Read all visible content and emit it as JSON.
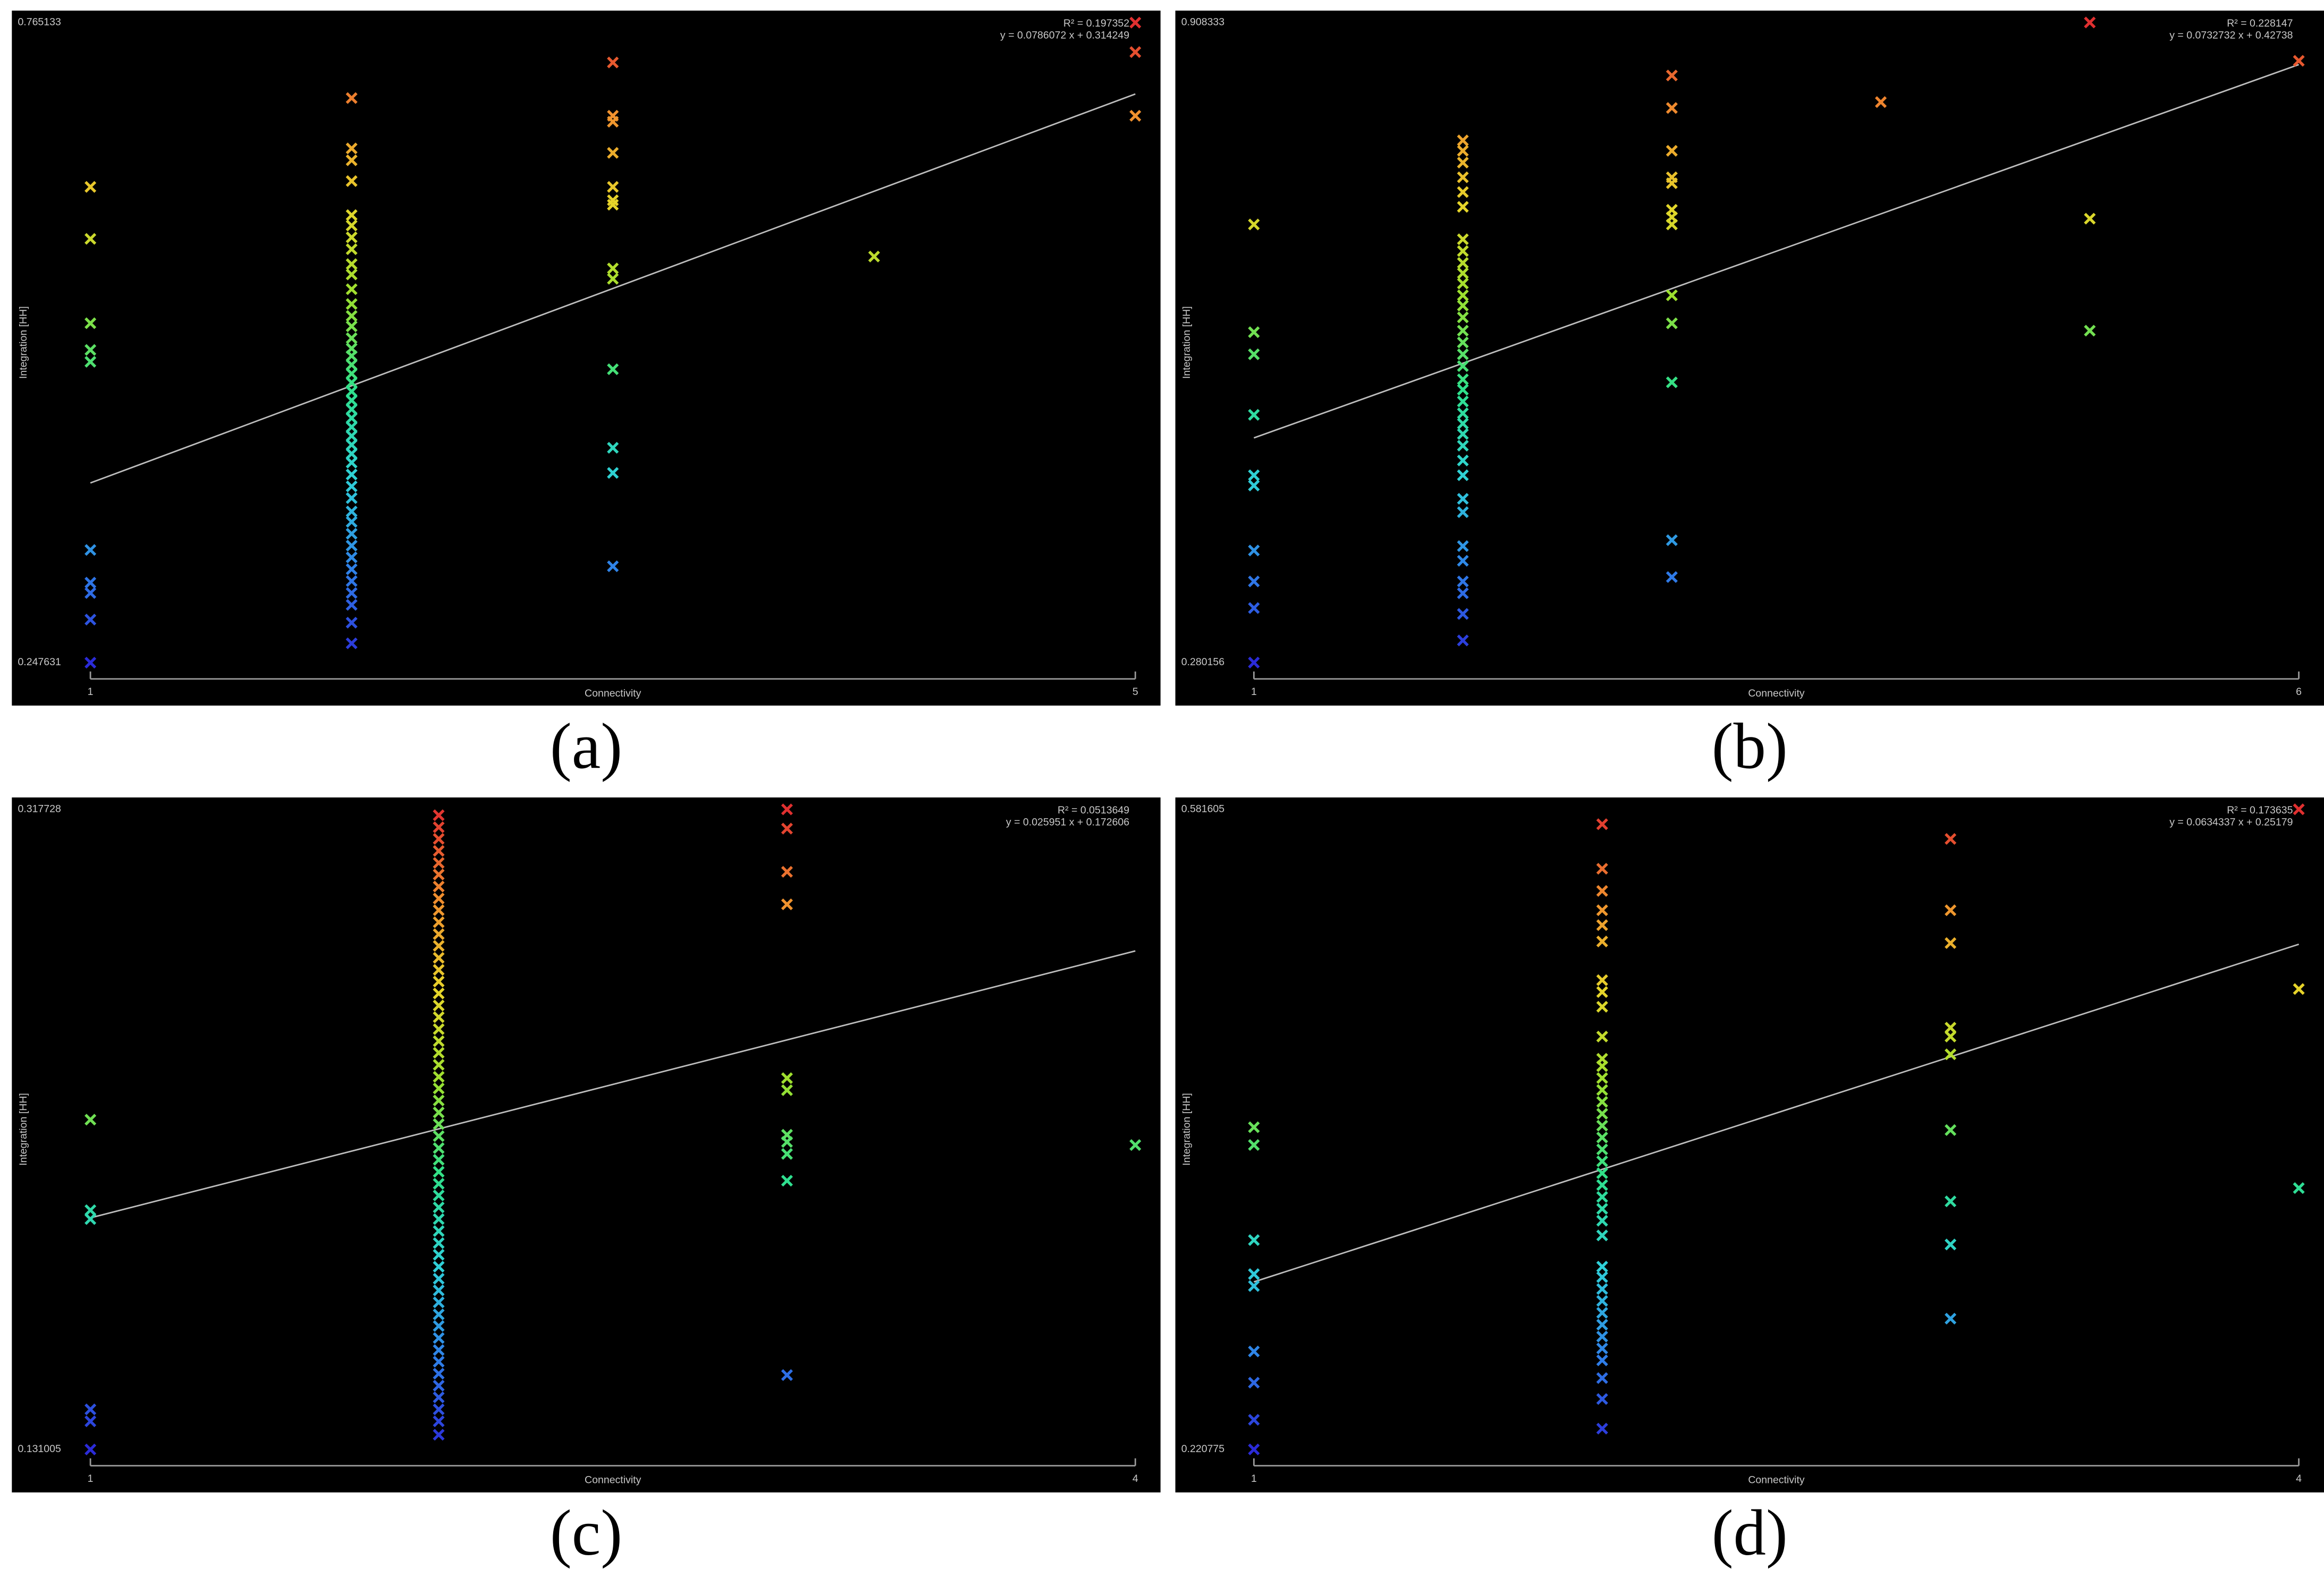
{
  "chart_data": [
    {
      "type": "scatter",
      "label": "(a)",
      "x_label": "Connectivity",
      "y_label": "Integration [HH]",
      "r2_label": "R² = 0.197352",
      "equation_label": "y = 0.0786072 x + 0.314249",
      "trendline": {
        "slope": 0.0786072,
        "intercept": 0.314249
      },
      "xlim": [
        1,
        5
      ],
      "xticks": [
        1,
        5
      ],
      "ylim": [
        0.247631,
        0.765133
      ],
      "yticks": [
        0.247631,
        0.765133
      ],
      "marker": "x",
      "background": "#000000",
      "trendline_color": "#bdbdbd",
      "colormap": [
        "#2b2bd8",
        "#2f7fe8",
        "#2fd0d8",
        "#2fe08a",
        "#9be02f",
        "#e6d52a",
        "#f0902e",
        "#e03030"
      ],
      "x": [
        1,
        1,
        1,
        1,
        1,
        1,
        1,
        1,
        1,
        1,
        2,
        2,
        2,
        2,
        2,
        2,
        2,
        2,
        2,
        2,
        2,
        2,
        2,
        2,
        2,
        2,
        2,
        2,
        2,
        2,
        2,
        2,
        2,
        2,
        2,
        2,
        2,
        2,
        2,
        2,
        2,
        2,
        2,
        2,
        2,
        2,
        2,
        2,
        2,
        2,
        2,
        2,
        2,
        3,
        3,
        3,
        3,
        3,
        3,
        3,
        3,
        3,
        3,
        3,
        3,
        3,
        4,
        5,
        5,
        5
      ],
      "values": [
        0.6322,
        0.5902,
        0.522,
        0.5004,
        0.4908,
        0.3387,
        0.3123,
        0.3039,
        0.2824,
        0.2476,
        0.704,
        0.6633,
        0.6537,
        0.6369,
        0.6094,
        0.601,
        0.5914,
        0.5818,
        0.5698,
        0.5614,
        0.5495,
        0.5375,
        0.5279,
        0.5195,
        0.5099,
        0.5016,
        0.4956,
        0.4884,
        0.4812,
        0.474,
        0.4668,
        0.4596,
        0.4524,
        0.4453,
        0.4381,
        0.4309,
        0.4237,
        0.4165,
        0.4093,
        0.3997,
        0.3901,
        0.3806,
        0.3698,
        0.3614,
        0.3518,
        0.3422,
        0.3327,
        0.3231,
        0.3135,
        0.3039,
        0.2943,
        0.2799,
        0.2632,
        0.7328,
        0.6897,
        0.6849,
        0.6597,
        0.6322,
        0.6214,
        0.6178,
        0.5663,
        0.5579,
        0.4848,
        0.4213,
        0.401,
        0.3255,
        0.5759,
        0.765,
        0.7412,
        0.6897
      ]
    },
    {
      "type": "scatter",
      "label": "(b)",
      "x_label": "Connectivity",
      "y_label": "Integration [HH]",
      "r2_label": "R² = 0.228147",
      "equation_label": "y = 0.0732732 x + 0.42738",
      "trendline": {
        "slope": 0.0732732,
        "intercept": 0.42738
      },
      "xlim": [
        1,
        6
      ],
      "xticks": [
        1,
        6
      ],
      "ylim": [
        0.280156,
        0.908333
      ],
      "yticks": [
        0.280156,
        0.908333
      ],
      "marker": "x",
      "background": "#000000",
      "trendline_color": "#bdbdbd",
      "colormap": [
        "#2b2bd8",
        "#2f7fe8",
        "#2fd0d8",
        "#2fe08a",
        "#9be02f",
        "#e6d52a",
        "#f0902e",
        "#e03030"
      ],
      "x": [
        1,
        1,
        1,
        1,
        1,
        1,
        1,
        1,
        1,
        1,
        2,
        2,
        2,
        2,
        2,
        2,
        2,
        2,
        2,
        2,
        2,
        2,
        2,
        2,
        2,
        2,
        2,
        2,
        2,
        2,
        2,
        2,
        2,
        2,
        2,
        2,
        2,
        2,
        2,
        2,
        2,
        2,
        2,
        2,
        2,
        3,
        3,
        3,
        3,
        3,
        3,
        3,
        3,
        3,
        3,
        3,
        3,
        3,
        4,
        5,
        5,
        5,
        6
      ],
      "values": [
        0.7101,
        0.6044,
        0.5827,
        0.5233,
        0.464,
        0.4539,
        0.3902,
        0.3598,
        0.3337,
        0.2802,
        0.7926,
        0.7824,
        0.7708,
        0.7564,
        0.7419,
        0.7274,
        0.6956,
        0.684,
        0.6724,
        0.6623,
        0.6522,
        0.6406,
        0.6305,
        0.6189,
        0.6059,
        0.5943,
        0.5827,
        0.5711,
        0.5581,
        0.548,
        0.5364,
        0.5248,
        0.5147,
        0.5045,
        0.493,
        0.4785,
        0.464,
        0.4409,
        0.4278,
        0.3945,
        0.3801,
        0.3598,
        0.3482,
        0.3279,
        0.3019,
        0.8563,
        0.8244,
        0.7824,
        0.7564,
        0.7506,
        0.7245,
        0.7173,
        0.7101,
        0.6406,
        0.6131,
        0.5552,
        0.4003,
        0.3641,
        0.8302,
        0.9083,
        0.7158,
        0.6059,
        0.8707
      ]
    },
    {
      "type": "scatter",
      "label": "(c)",
      "x_label": "Connectivity",
      "y_label": "Integration [HH]",
      "r2_label": "R² = 0.0513649",
      "equation_label": "y = 0.025951 x + 0.172606",
      "trendline": {
        "slope": 0.025951,
        "intercept": 0.172606
      },
      "xlim": [
        1,
        4
      ],
      "xticks": [
        1,
        4
      ],
      "ylim": [
        0.131005,
        0.317728
      ],
      "yticks": [
        0.131005,
        0.317728
      ],
      "marker": "x",
      "background": "#000000",
      "trendline_color": "#bdbdbd",
      "colormap": [
        "#2b2bd8",
        "#2f7fe8",
        "#2fd0d8",
        "#2fe08a",
        "#9be02f",
        "#e6d52a",
        "#f0902e",
        "#e03030"
      ],
      "x": [
        1,
        1,
        1,
        1,
        1,
        1,
        2,
        2,
        2,
        2,
        2,
        2,
        2,
        2,
        2,
        2,
        2,
        2,
        2,
        2,
        2,
        2,
        2,
        2,
        2,
        2,
        2,
        2,
        2,
        2,
        2,
        2,
        2,
        2,
        2,
        2,
        2,
        2,
        2,
        2,
        2,
        2,
        2,
        2,
        2,
        2,
        2,
        2,
        2,
        2,
        2,
        2,
        2,
        2,
        2,
        2,
        2,
        2,
        2,
        3,
        3,
        3,
        3,
        3,
        3,
        3,
        3,
        3,
        3,
        3,
        4
      ],
      "values": [
        0.2272,
        0.2008,
        0.1982,
        0.1427,
        0.1392,
        0.131,
        0.316,
        0.3125,
        0.3091,
        0.3056,
        0.3021,
        0.2987,
        0.2952,
        0.2917,
        0.2883,
        0.2848,
        0.2813,
        0.2779,
        0.2744,
        0.2709,
        0.2675,
        0.264,
        0.2605,
        0.2571,
        0.2536,
        0.2501,
        0.2467,
        0.2432,
        0.2397,
        0.2363,
        0.2328,
        0.2293,
        0.2259,
        0.2224,
        0.2189,
        0.2155,
        0.212,
        0.2085,
        0.2051,
        0.2016,
        0.1982,
        0.1947,
        0.1912,
        0.1878,
        0.1843,
        0.1808,
        0.1774,
        0.1739,
        0.1704,
        0.167,
        0.1635,
        0.16,
        0.1566,
        0.1531,
        0.1496,
        0.1462,
        0.1427,
        0.1392,
        0.1353,
        0.3177,
        0.3121,
        0.2995,
        0.29,
        0.2393,
        0.2358,
        0.2228,
        0.2207,
        0.2172,
        0.2094,
        0.1527,
        0.2198
      ]
    },
    {
      "type": "scatter",
      "label": "(d)",
      "x_label": "Connectivity",
      "y_label": "Integration [HH]",
      "r2_label": "R² = 0.173635",
      "equation_label": "y = 0.0634337 x + 0.25179",
      "trendline": {
        "slope": 0.0634337,
        "intercept": 0.25179
      },
      "xlim": [
        1,
        4
      ],
      "xticks": [
        1,
        4
      ],
      "ylim": [
        0.220775,
        0.581605
      ],
      "yticks": [
        0.220775,
        0.581605
      ],
      "marker": "x",
      "background": "#000000",
      "trendline_color": "#bdbdbd",
      "colormap": [
        "#2b2bd8",
        "#2f7fe8",
        "#2fd0d8",
        "#2fe08a",
        "#9be02f",
        "#e6d52a",
        "#f0902e",
        "#e03030"
      ],
      "x": [
        1,
        1,
        1,
        1,
        1,
        1,
        1,
        1,
        1,
        2,
        2,
        2,
        2,
        2,
        2,
        2,
        2,
        2,
        2,
        2,
        2,
        2,
        2,
        2,
        2,
        2,
        2,
        2,
        2,
        2,
        2,
        2,
        2,
        2,
        2,
        2,
        2,
        2,
        2,
        2,
        2,
        2,
        2,
        2,
        2,
        2,
        2,
        3,
        3,
        3,
        3,
        3,
        3,
        3,
        3,
        3,
        3,
        4,
        4,
        4
      ],
      "values": [
        0.4024,
        0.3924,
        0.3388,
        0.3196,
        0.3129,
        0.276,
        0.2584,
        0.2375,
        0.2208,
        0.5732,
        0.5481,
        0.5356,
        0.5247,
        0.5163,
        0.5071,
        0.4853,
        0.4786,
        0.4703,
        0.4535,
        0.441,
        0.4368,
        0.4301,
        0.4234,
        0.4167,
        0.41,
        0.4033,
        0.3966,
        0.3899,
        0.3832,
        0.3765,
        0.3698,
        0.3631,
        0.3564,
        0.3497,
        0.3414,
        0.3238,
        0.3179,
        0.3112,
        0.3045,
        0.2978,
        0.2911,
        0.2844,
        0.2777,
        0.271,
        0.261,
        0.2492,
        0.2325,
        0.5649,
        0.5247,
        0.5062,
        0.4585,
        0.4535,
        0.4435,
        0.4008,
        0.3606,
        0.3363,
        0.2945,
        0.5816,
        0.4803,
        0.3681
      ]
    }
  ]
}
